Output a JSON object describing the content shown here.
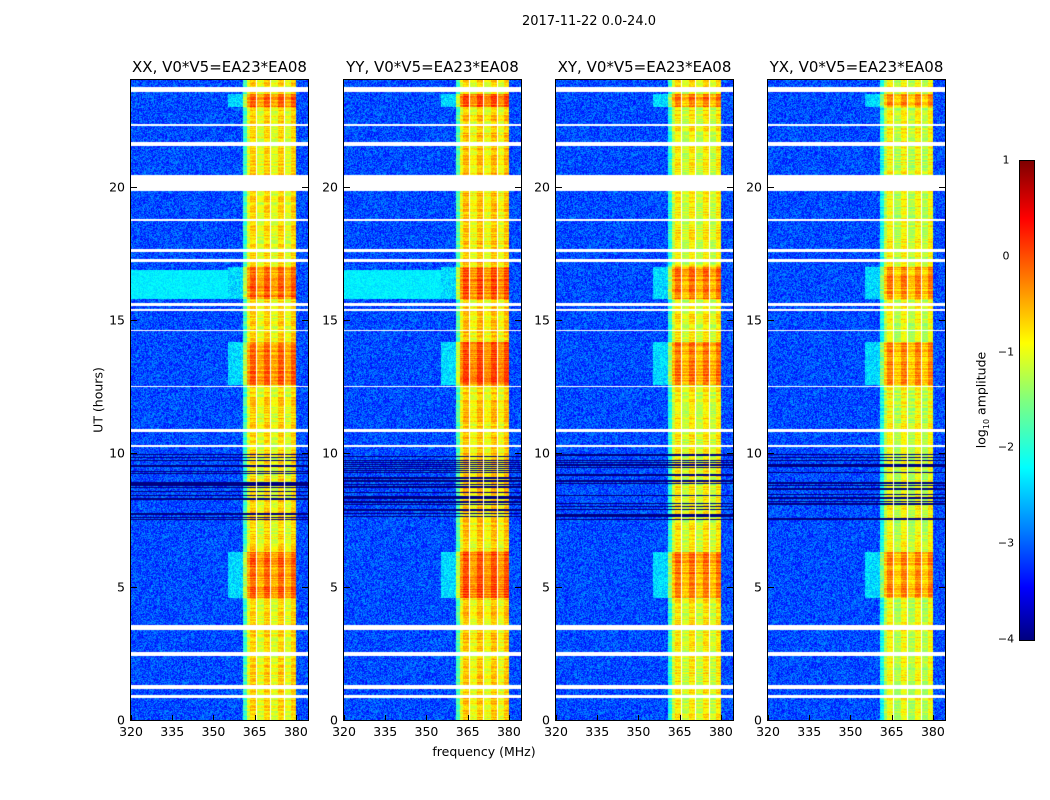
{
  "chart_data": {
    "type": "heatmap",
    "title": "2017-11-22 0.0-24.0",
    "xlabel": "frequency (MHz)",
    "ylabel": "UT (hours)",
    "xlim": [
      320,
      384.4
    ],
    "ylim": [
      0,
      24
    ],
    "xticks": [
      "320",
      "335",
      "350",
      "365",
      "380"
    ],
    "xtick_values": [
      320,
      335,
      350,
      365,
      380
    ],
    "yticks": [
      "0",
      "5",
      "10",
      "15",
      "20"
    ],
    "ytick_values": [
      0,
      5,
      10,
      15,
      20
    ],
    "panels": [
      {
        "title": "XX, V0*V5=EA23*EA08",
        "cyan_patch": true,
        "band_level": -0.9
      },
      {
        "title": "YY, V0*V5=EA23*EA08",
        "cyan_patch": true,
        "band_level": -0.8
      },
      {
        "title": "XY, V0*V5=EA23*EA08",
        "cyan_patch": false,
        "band_level": -1.0
      },
      {
        "title": "YX, V0*V5=EA23*EA08",
        "cyan_patch": false,
        "band_level": -1.1
      }
    ],
    "background_level": -3.0,
    "band_mhz": [
      360.7,
      380.0
    ],
    "flagged_mhz": [
      [
        365.2,
        365.8
      ],
      [
        370.3,
        370.9
      ],
      [
        375.4,
        376.0
      ]
    ],
    "flagged_hours": [
      [
        23.55,
        23.75
      ],
      [
        22.3,
        22.38
      ],
      [
        21.55,
        21.7
      ],
      [
        20.45,
        19.85
      ],
      [
        18.75,
        18.82
      ],
      [
        17.55,
        17.7
      ],
      [
        17.2,
        17.3
      ],
      [
        15.55,
        15.65
      ],
      [
        15.35,
        15.42
      ],
      [
        14.6,
        14.66
      ],
      [
        12.5,
        12.56
      ],
      [
        10.8,
        10.95
      ],
      [
        10.25,
        10.32
      ],
      [
        3.6,
        3.4
      ],
      [
        2.55,
        2.4
      ],
      [
        1.35,
        1.2
      ],
      [
        0.95,
        0.85
      ]
    ],
    "dark_hours": [
      7.5,
      10.0
    ],
    "bright_hours": [
      [
        12.6,
        14.2
      ],
      [
        15.8,
        17.0
      ],
      [
        4.6,
        6.3
      ],
      [
        23.0,
        23.5
      ]
    ],
    "colorbar": {
      "label_prefix": "log",
      "label_sub": "10",
      "label_suffix": " amplitude",
      "ticks": [
        "1",
        "0",
        "−1",
        "−2",
        "−3",
        "−4"
      ],
      "tick_values": [
        1,
        0,
        -1,
        -2,
        -3,
        -4
      ],
      "range": [
        -4,
        1
      ],
      "colormap": "jet"
    }
  }
}
